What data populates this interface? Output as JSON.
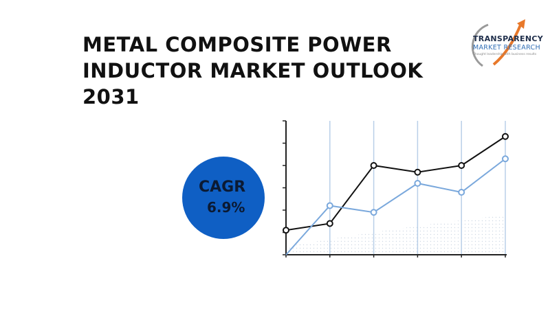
{
  "title_lines": [
    "METAL COMPOSITE POWER",
    "INDUCTOR MARKET OUTLOOK",
    "2031"
  ],
  "logo": {
    "name": "TRANSPARENCY",
    "name2": "MARKET RESEARCH",
    "tagline": "Thought leadership with business results",
    "colors": {
      "navy": "#1f2e4b",
      "blue": "#2f6db5",
      "orange": "#e8782a",
      "gray": "#9a9a9a"
    }
  },
  "cagr": {
    "label": "CAGR",
    "value": "6.9%",
    "color": "#0f5fc4"
  },
  "chart_data": {
    "type": "line",
    "x": [
      0,
      1,
      2,
      3,
      4,
      5
    ],
    "ylim": [
      0,
      6
    ],
    "series": [
      {
        "color": "#111111",
        "values": [
          1.1,
          1.4,
          4.0,
          3.7,
          4.0,
          5.3
        ]
      },
      {
        "color": "#7aa8dc",
        "values": [
          0.0,
          2.2,
          1.9,
          3.2,
          2.8,
          4.3
        ]
      }
    ],
    "x_gridlines": true,
    "shaded_area": true
  }
}
